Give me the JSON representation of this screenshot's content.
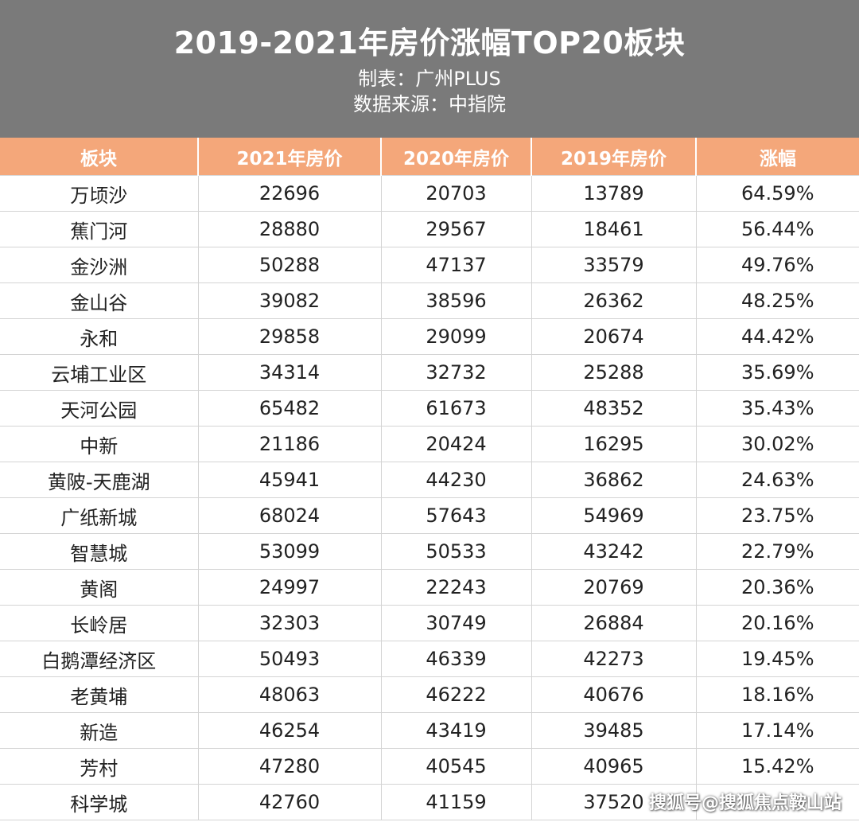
{
  "colors": {
    "header_bg": "#7a7a7a",
    "table_header_bg": "#f4a77a",
    "text": "#222222"
  },
  "header": {
    "title": "2019-2021年房价涨幅TOP20板块",
    "subtitle_maker": "制表：广州PLUS",
    "subtitle_source": "数据来源：中指院"
  },
  "table": {
    "columns": [
      "板块",
      "2021年房价",
      "2020年房价",
      "2019年房价",
      "涨幅"
    ],
    "rows": [
      [
        "万顷沙",
        "22696",
        "20703",
        "13789",
        "64.59%"
      ],
      [
        "蕉门河",
        "28880",
        "29567",
        "18461",
        "56.44%"
      ],
      [
        "金沙洲",
        "50288",
        "47137",
        "33579",
        "49.76%"
      ],
      [
        "金山谷",
        "39082",
        "38596",
        "26362",
        "48.25%"
      ],
      [
        "永和",
        "29858",
        "29099",
        "20674",
        "44.42%"
      ],
      [
        "云埔工业区",
        "34314",
        "32732",
        "25288",
        "35.69%"
      ],
      [
        "天河公园",
        "65482",
        "61673",
        "48352",
        "35.43%"
      ],
      [
        "中新",
        "21186",
        "20424",
        "16295",
        "30.02%"
      ],
      [
        "黄陂-天鹿湖",
        "45941",
        "44230",
        "36862",
        "24.63%"
      ],
      [
        "广纸新城",
        "68024",
        "57643",
        "54969",
        "23.75%"
      ],
      [
        "智慧城",
        "53099",
        "50533",
        "43242",
        "22.79%"
      ],
      [
        "黄阁",
        "24997",
        "22243",
        "20769",
        "20.36%"
      ],
      [
        "长岭居",
        "32303",
        "30749",
        "26884",
        "20.16%"
      ],
      [
        "白鹅潭经济区",
        "50493",
        "46339",
        "42273",
        "19.45%"
      ],
      [
        "老黄埔",
        "48063",
        "46222",
        "40676",
        "18.16%"
      ],
      [
        "新造",
        "46254",
        "43419",
        "39485",
        "17.14%"
      ],
      [
        "芳村",
        "47280",
        "40545",
        "40965",
        "15.42%"
      ],
      [
        "科学城",
        "42760",
        "41159",
        "37520",
        ""
      ]
    ]
  },
  "watermark": "搜狐号@搜狐焦点鞍山站"
}
